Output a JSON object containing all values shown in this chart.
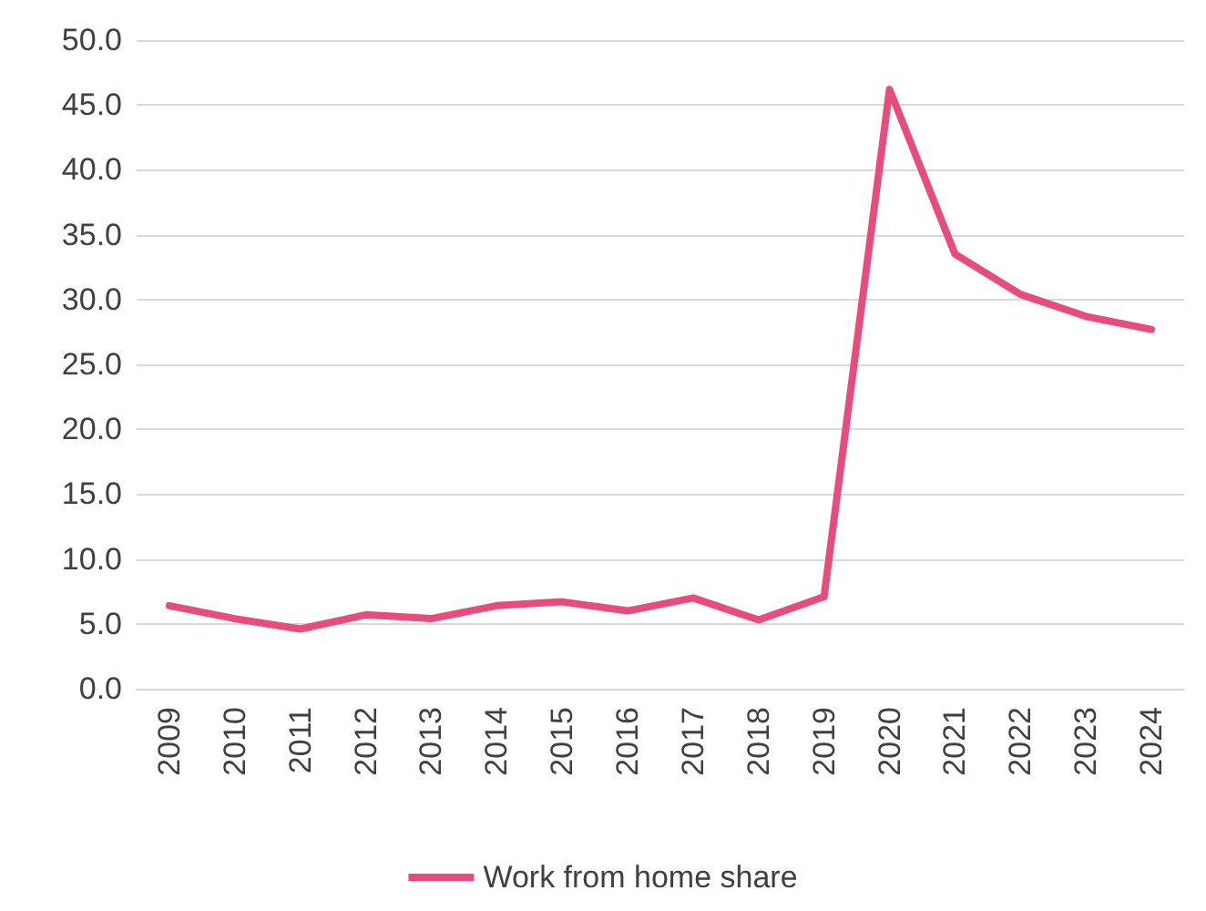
{
  "chart_data": {
    "type": "line",
    "categories": [
      "2009",
      "2010",
      "2011",
      "2012",
      "2013",
      "2014",
      "2015",
      "2016",
      "2017",
      "2018",
      "2019",
      "2020",
      "2021",
      "2022",
      "2023",
      "2024"
    ],
    "series": [
      {
        "name": "Work from home share",
        "color": "#e84c7d",
        "values": [
          6.4,
          5.4,
          4.6,
          5.7,
          5.4,
          6.4,
          6.7,
          6.0,
          7.0,
          5.3,
          7.1,
          46.2,
          33.5,
          30.4,
          28.7,
          27.7
        ]
      }
    ],
    "ylim": [
      0,
      50
    ],
    "yticks": [
      {
        "value": 0,
        "label": "0.0"
      },
      {
        "value": 5,
        "label": "5.0"
      },
      {
        "value": 10,
        "label": "10.0"
      },
      {
        "value": 15,
        "label": "15.0"
      },
      {
        "value": 20,
        "label": "20.0"
      },
      {
        "value": 25,
        "label": "25.0"
      },
      {
        "value": 30,
        "label": "30.0"
      },
      {
        "value": 35,
        "label": "35.0"
      },
      {
        "value": 40,
        "label": "40.0"
      },
      {
        "value": 45,
        "label": "45.0"
      },
      {
        "value": 50,
        "label": "50.0"
      }
    ],
    "grid": "y",
    "legend": "bottom",
    "marker": "none",
    "line_style": "solid"
  }
}
